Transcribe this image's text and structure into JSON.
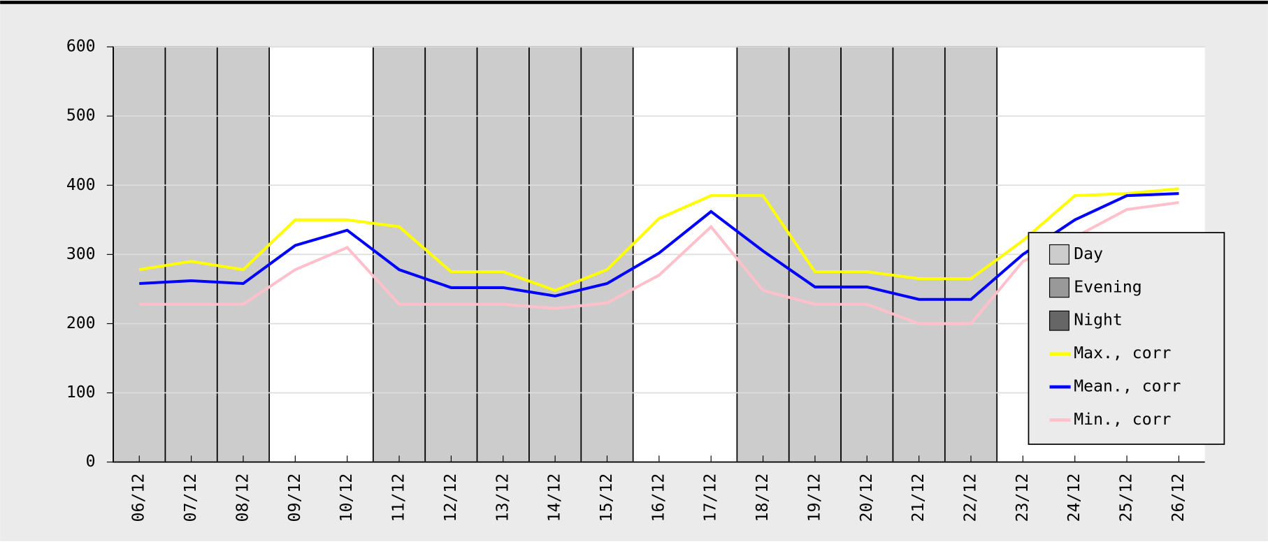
{
  "chart_data": {
    "type": "line",
    "categories": [
      "06/12",
      "07/12",
      "08/12",
      "09/12",
      "10/12",
      "11/12",
      "12/12",
      "13/12",
      "14/12",
      "15/12",
      "16/12",
      "17/12",
      "18/12",
      "19/12",
      "20/12",
      "21/12",
      "22/12",
      "23/12",
      "24/12",
      "25/12",
      "26/12"
    ],
    "shaded": [
      true,
      true,
      true,
      false,
      false,
      true,
      true,
      true,
      true,
      true,
      false,
      false,
      true,
      true,
      true,
      true,
      true,
      false,
      false,
      false,
      false
    ],
    "areas": [
      {
        "name": "Day",
        "color": "#cccccc"
      },
      {
        "name": "Evening",
        "color": "#999999"
      },
      {
        "name": "Night",
        "color": "#666666"
      }
    ],
    "series": [
      {
        "name": "Max., corr",
        "color": "#ffff00",
        "values": [
          278,
          290,
          278,
          350,
          350,
          340,
          275,
          275,
          248,
          278,
          352,
          385,
          385,
          275,
          275,
          265,
          265,
          320,
          385,
          388,
          395
        ]
      },
      {
        "name": "Mean., corr",
        "color": "#0000ff",
        "values": [
          258,
          262,
          258,
          313,
          335,
          278,
          252,
          252,
          240,
          258,
          302,
          362,
          305,
          253,
          253,
          235,
          235,
          300,
          350,
          385,
          388
        ]
      },
      {
        "name": "Min., corr",
        "color": "#ffc0cb",
        "values": [
          228,
          228,
          228,
          278,
          310,
          228,
          228,
          228,
          222,
          230,
          270,
          340,
          248,
          228,
          228,
          200,
          200,
          290,
          325,
          365,
          375
        ]
      }
    ],
    "ylim": [
      0,
      600
    ],
    "yticks": [
      0,
      100,
      200,
      300,
      400,
      500,
      600
    ],
    "grid": true
  }
}
